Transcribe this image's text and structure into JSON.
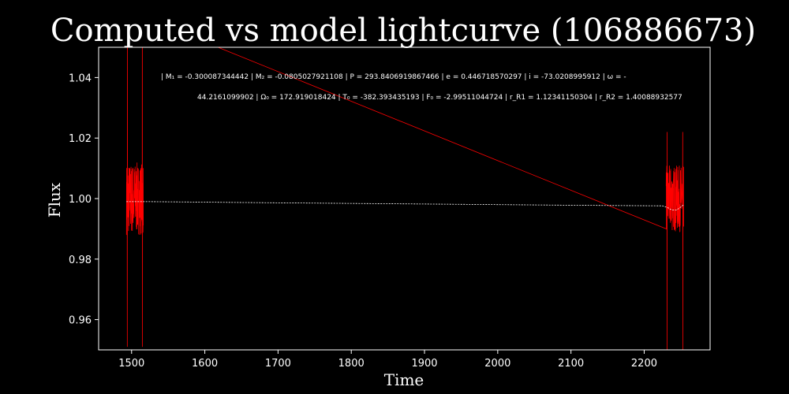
{
  "chart_data": {
    "type": "line",
    "title": "Computed vs model lightcurve (106886673)",
    "xlabel": "Time",
    "ylabel": "Flux",
    "xlim": [
      1455,
      2290
    ],
    "ylim": [
      0.95,
      1.05
    ],
    "xticks": [
      1500,
      1600,
      1700,
      1800,
      1900,
      2000,
      2100,
      2200
    ],
    "yticks": [
      0.96,
      0.98,
      1.0,
      1.02,
      1.04
    ],
    "ytick_labels": [
      "0.96",
      "0.98",
      "1.00",
      "1.02",
      "1.04"
    ],
    "grid": false,
    "colors": {
      "background": "#000000",
      "observed": "#ff0000",
      "model": "#ffffff",
      "frame": "#ffffff",
      "text": "#ffffff"
    },
    "annotation": [
      "| M₁ = -0.300087344442 | M₂ = -0.0805027921108 | P = 293.8406919867466 | e = 0.446718570297 | i = -73.0208995912 | ω = -",
      "44.2161099902 | Ω₀ = 172.919018424 | T₀ = -382.393435193 | F₀ = -2.99511044724 | r_R1 = 1.12341150304 | r_R2 = 1.40088932577"
    ],
    "series": [
      {
        "style": "observed",
        "segments": [
          {
            "x_range": [
              1493,
              1516
            ],
            "y_center": 1.0,
            "y_spread": 0.012,
            "y_extremes": [
              0.951,
              1.06
            ]
          },
          {
            "x_range": [
              1516,
              2230
            ],
            "y_start": 1.06,
            "y_end": 0.99
          },
          {
            "x_range": [
              2230,
              2254
            ],
            "y_center": 1.0,
            "y_spread": 0.011,
            "y_extremes": [
              0.95,
              1.022
            ]
          }
        ]
      },
      {
        "style": "model",
        "points": [
          [
            1493,
            0.999
          ],
          [
            1520,
            0.999
          ],
          [
            1700,
            0.9986
          ],
          [
            1900,
            0.9982
          ],
          [
            2100,
            0.9978
          ],
          [
            2225,
            0.9976
          ],
          [
            2232,
            0.997
          ],
          [
            2238,
            0.9962
          ],
          [
            2244,
            0.9962
          ],
          [
            2250,
            0.9972
          ],
          [
            2254,
            0.998
          ]
        ]
      }
    ]
  }
}
